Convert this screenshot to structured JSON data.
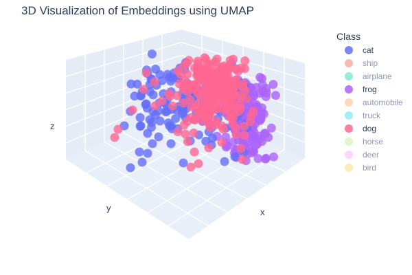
{
  "chart_data": {
    "type": "scatter",
    "title": "3D Visualization of Embeddings using UMAP",
    "xlabel": "x",
    "ylabel": "y",
    "zlabel": "z",
    "legend_title": "Class",
    "legend_position": "right",
    "grid": true,
    "series": [
      {
        "name": "cat",
        "color": "#636efa",
        "visible": true
      },
      {
        "name": "ship",
        "color": "#EF553B",
        "visible": false
      },
      {
        "name": "airplane",
        "color": "#00cc96",
        "visible": false
      },
      {
        "name": "frog",
        "color": "#ab63fa",
        "visible": true
      },
      {
        "name": "automobile",
        "color": "#FFA15A",
        "visible": false
      },
      {
        "name": "truck",
        "color": "#19d3f3",
        "visible": false
      },
      {
        "name": "dog",
        "color": "#FF6692",
        "visible": true
      },
      {
        "name": "horse",
        "color": "#B6E880",
        "visible": false
      },
      {
        "name": "deer",
        "color": "#FF97FF",
        "visible": false
      },
      {
        "name": "bird",
        "color": "#FECB52",
        "visible": false
      }
    ]
  }
}
